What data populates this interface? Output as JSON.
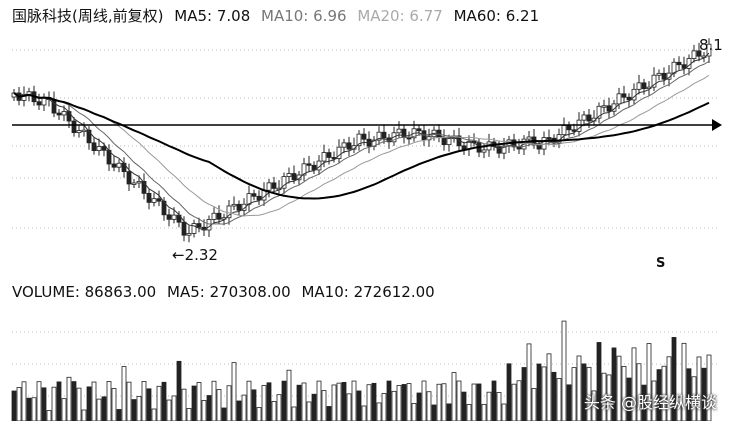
{
  "header": {
    "title": "国脉科技(周线,前复权)",
    "ma5": "MA5: 7.08",
    "ma10": "MA10: 6.96",
    "ma20": "MA20: 6.77",
    "ma60": "MA60: 6.21"
  },
  "price_panel": {
    "low_label": "←2.32",
    "high_label": "8.1",
    "marker": "S"
  },
  "volume_panel": {
    "volume": "VOLUME: 86863.00",
    "ma5": "MA5: 270308.00",
    "ma10": "MA10: 272612.00"
  },
  "watermark": "头条 @股经纵横谈",
  "chart_data": {
    "type": "candlestick",
    "title": "国脉科技(周线,前复权)",
    "low_annotation": 2.32,
    "high_annotation": 8.1,
    "indicators": {
      "MA5": 7.08,
      "MA10": 6.96,
      "MA20": 6.77,
      "MA60": 6.21
    },
    "volume_indicators": {
      "VOLUME": 86863.0,
      "MA5": 270308.0,
      "MA10": 272612.0
    },
    "grid": true
  }
}
